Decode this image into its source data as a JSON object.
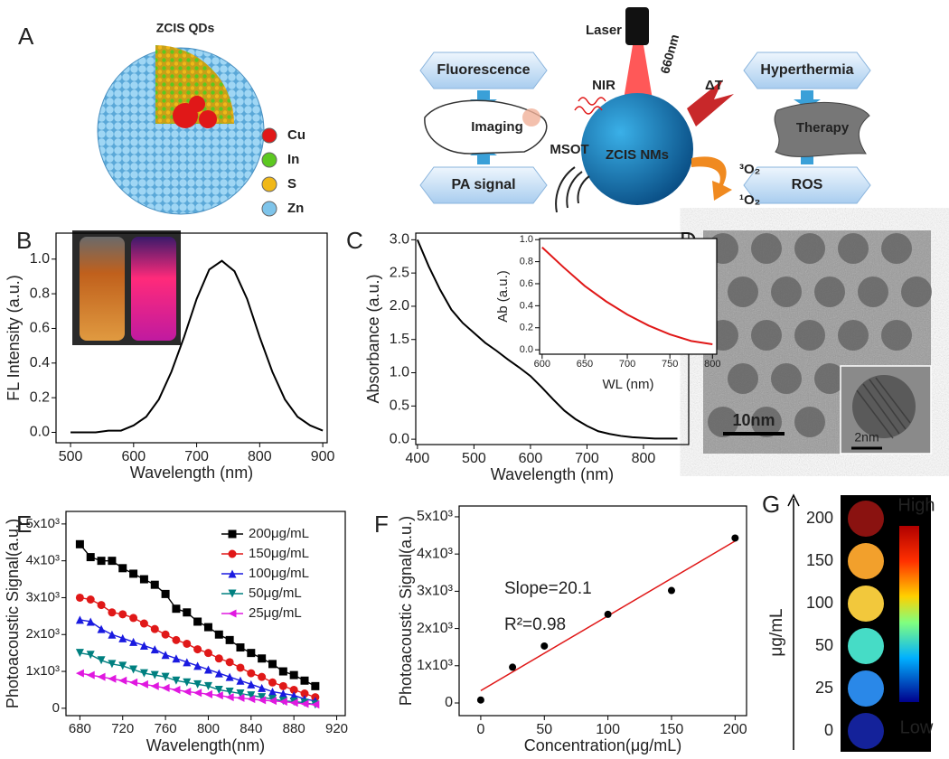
{
  "panel_labels": [
    "A",
    "B",
    "C",
    "D",
    "E",
    "F",
    "G"
  ],
  "diagram": {
    "title": "ZCIS QDs",
    "legend": [
      {
        "label": "Cu",
        "color": "#e01818"
      },
      {
        "label": "In",
        "color": "#5cc820"
      },
      {
        "label": "S",
        "color": "#f0b818"
      },
      {
        "label": "Zn",
        "color": "#7ec4ea"
      }
    ],
    "boxes": [
      "Fluorescence",
      "PA signal",
      "Hyperthermia",
      "ROS"
    ],
    "center": "ZCIS NMs",
    "laser": "Laser",
    "wavelength": "660nm",
    "nir": "NIR",
    "delta_t": "ΔT",
    "imaging": "Imaging",
    "therapy": "Therapy",
    "msot": "MSOT",
    "triplet": "³O₂",
    "singlet": "¹O₂"
  },
  "tem": {
    "scale": "10nm",
    "inset_scale": "2nm"
  },
  "chart_data": [
    {
      "type": "line",
      "xlabel": "Wavelength (nm)",
      "ylabel": "FL Intensity (a.u.)",
      "x": [
        500,
        520,
        540,
        560,
        580,
        600,
        620,
        640,
        660,
        680,
        700,
        720,
        740,
        760,
        780,
        800,
        820,
        840,
        860,
        880,
        900
      ],
      "series": [
        {
          "color": "#000000",
          "values": [
            0.0,
            0.0,
            0.0,
            0.01,
            0.01,
            0.04,
            0.09,
            0.19,
            0.35,
            0.55,
            0.77,
            0.94,
            0.99,
            0.93,
            0.77,
            0.55,
            0.35,
            0.19,
            0.09,
            0.04,
            0.01
          ]
        }
      ],
      "xlim": [
        477,
        907
      ],
      "xticks": [
        500,
        600,
        700,
        800,
        900
      ],
      "ylim": [
        -0.06,
        1.15
      ],
      "yticks": [
        {
          "value": 0,
          "label": "0.0"
        },
        0.2,
        0.4,
        0.6,
        0.8,
        {
          "value": 1,
          "label": "1.0"
        }
      ]
    },
    {
      "type": "line",
      "xlabel": "Wavelength (nm)",
      "ylabel": "Absorbance (a.u.)",
      "x": [
        400,
        420,
        440,
        460,
        480,
        500,
        520,
        540,
        560,
        580,
        600,
        620,
        640,
        660,
        680,
        700,
        720,
        740,
        760,
        780,
        800,
        820,
        860
      ],
      "series": [
        {
          "color": "#000000",
          "values": [
            3.0,
            2.6,
            2.25,
            1.95,
            1.75,
            1.6,
            1.45,
            1.33,
            1.2,
            1.08,
            0.95,
            0.78,
            0.6,
            0.43,
            0.3,
            0.2,
            0.12,
            0.08,
            0.05,
            0.03,
            0.02,
            0.01,
            0.01
          ]
        }
      ],
      "xlim": [
        397,
        880
      ],
      "xticks": [
        400,
        500,
        600,
        700,
        800
      ],
      "ylim": [
        -0.08,
        3.1
      ],
      "yticks": [
        {
          "value": 0,
          "label": "0.0"
        },
        0.5,
        {
          "value": 1,
          "label": "1.0"
        },
        1.5,
        {
          "value": 2,
          "label": "2.0"
        },
        2.5,
        {
          "value": 3,
          "label": "3.0"
        }
      ]
    },
    {
      "type": "line",
      "xlabel": "WL (nm)",
      "ylabel": "Ab (a.u.)",
      "x": [
        600,
        625,
        650,
        675,
        700,
        725,
        750,
        775,
        800
      ],
      "series": [
        {
          "color": "#e01818",
          "values": [
            0.93,
            0.75,
            0.58,
            0.44,
            0.32,
            0.22,
            0.14,
            0.08,
            0.05
          ]
        }
      ],
      "xlim": [
        597,
        805
      ],
      "xticks": [
        600,
        650,
        700,
        750,
        800
      ],
      "ylim": [
        -0.04,
        1.01
      ],
      "yticks": [
        {
          "value": 0,
          "label": "0.0"
        },
        0.2,
        0.4,
        0.6,
        0.8,
        {
          "value": 1,
          "label": "1.0"
        }
      ]
    },
    {
      "type": "line",
      "xlabel": "Wavelength(nm)",
      "ylabel": "Photoacoustic Signal(a.u.)",
      "legend": "upper right",
      "markers": true,
      "x": [
        680,
        690,
        700,
        710,
        720,
        730,
        740,
        750,
        760,
        770,
        780,
        790,
        800,
        810,
        820,
        830,
        840,
        850,
        860,
        870,
        880,
        890,
        900
      ],
      "series": [
        {
          "name": "200μg/mL",
          "color": "#000000",
          "marker": "square",
          "values": [
            4450,
            4100,
            4000,
            4000,
            3800,
            3650,
            3500,
            3350,
            3100,
            2700,
            2600,
            2350,
            2200,
            2000,
            1850,
            1650,
            1500,
            1350,
            1200,
            1000,
            900,
            750,
            600
          ]
        },
        {
          "name": "150μg/mL",
          "color": "#e01818",
          "marker": "circle",
          "values": [
            3000,
            2950,
            2800,
            2600,
            2550,
            2450,
            2300,
            2150,
            2000,
            1850,
            1750,
            1600,
            1500,
            1350,
            1250,
            1100,
            950,
            850,
            700,
            600,
            500,
            400,
            300
          ]
        },
        {
          "name": "100μg/mL",
          "color": "#1a1ae0",
          "marker": "triangle-up",
          "values": [
            2400,
            2350,
            2150,
            2000,
            1900,
            1800,
            1700,
            1600,
            1450,
            1350,
            1250,
            1150,
            1050,
            950,
            850,
            750,
            650,
            550,
            450,
            400,
            350,
            250,
            200
          ]
        },
        {
          "name": "50μg/mL",
          "color": "#008080",
          "marker": "triangle-down",
          "values": [
            1500,
            1450,
            1300,
            1200,
            1150,
            1050,
            950,
            900,
            850,
            750,
            700,
            650,
            600,
            500,
            450,
            400,
            350,
            300,
            250,
            200,
            180,
            150,
            100
          ]
        },
        {
          "name": "25μg/mL",
          "color": "#e018e0",
          "marker": "triangle-left",
          "values": [
            950,
            900,
            850,
            800,
            750,
            700,
            650,
            600,
            550,
            500,
            450,
            420,
            380,
            350,
            300,
            280,
            250,
            220,
            200,
            180,
            150,
            120,
            100
          ]
        }
      ],
      "xlim": [
        667,
        928
      ],
      "xticks": [
        680,
        720,
        760,
        800,
        840,
        880,
        920
      ],
      "ylim": [
        -200,
        5340
      ],
      "yticks": [
        0,
        {
          "value": 1000,
          "label": "1x10³"
        },
        {
          "value": 2000,
          "label": "2x10³"
        },
        {
          "value": 3000,
          "label": "3x10³"
        },
        {
          "value": 4000,
          "label": "4x10³"
        },
        {
          "value": 5000,
          "label": "5x10³"
        }
      ]
    },
    {
      "type": "scatter",
      "xlabel": "Concentration(μg/mL)",
      "ylabel": "Photoacoustic Signal(a.u.)",
      "x": [
        0,
        25,
        50,
        100,
        150,
        200
      ],
      "values": [
        80,
        960,
        1530,
        2380,
        3020,
        4430
      ],
      "color": "#000000",
      "fit": {
        "x": [
          0,
          200
        ],
        "values": [
          330,
          4350
        ],
        "color": "#e01818"
      },
      "annotations": [
        "Slope=20.1",
        "R²=0.98"
      ],
      "xlim": [
        -17,
        209
      ],
      "xticks": [
        0,
        50,
        100,
        150,
        200
      ],
      "ylim": [
        -340,
        5290
      ],
      "yticks": [
        0,
        {
          "value": 1000,
          "label": "1x10³"
        },
        {
          "value": 2000,
          "label": "2x10³"
        },
        {
          "value": 3000,
          "label": "3x10³"
        },
        {
          "value": 4000,
          "label": "4x10³"
        },
        {
          "value": 5000,
          "label": "5x10³"
        }
      ]
    }
  ],
  "intensity_map": {
    "axis_label": "μg/mL",
    "high": "High",
    "low": "Low",
    "categories": [
      200,
      150,
      100,
      50,
      25,
      0
    ],
    "colors": [
      "#8a1210",
      "#f2a02c",
      "#f2c83c",
      "#46dcc6",
      "#2a88e8",
      "#14229a"
    ]
  }
}
